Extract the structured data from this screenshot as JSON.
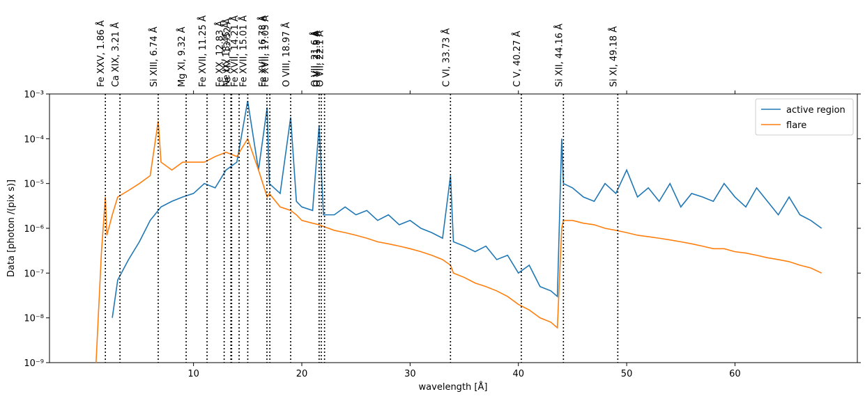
{
  "chart_data": {
    "type": "line",
    "xlabel": "wavelength [Å]",
    "ylabel": "Data [photon /(pix s)]",
    "log_y": true,
    "legend": "upper right",
    "xlim": [
      -3.3,
      71.3
    ],
    "ylim": [
      1e-09,
      0.001
    ],
    "xticks": [
      10,
      20,
      30,
      40,
      50,
      60
    ],
    "yticks": [
      {
        "value": 1e-09,
        "label": "10⁻⁹"
      },
      {
        "value": 1e-08,
        "label": "10⁻⁸"
      },
      {
        "value": 1e-07,
        "label": "10⁻⁷"
      },
      {
        "value": 1e-06,
        "label": "10⁻⁶"
      },
      {
        "value": 1e-05,
        "label": "10⁻⁵"
      },
      {
        "value": 0.0001,
        "label": "10⁻⁴"
      },
      {
        "value": 0.001,
        "label": "10⁻³"
      }
    ],
    "x": [
      1,
      1.5,
      1.86,
      2,
      2.5,
      3,
      4,
      5,
      6,
      6.74,
      7,
      8,
      9,
      10,
      11,
      12,
      13,
      14,
      15,
      16,
      16.8,
      17,
      18,
      18.97,
      19.5,
      20,
      21,
      21.6,
      22,
      23,
      24,
      25,
      26,
      27,
      28,
      29,
      30,
      31,
      32,
      33,
      33.73,
      34,
      35,
      36,
      37,
      38,
      39,
      40,
      41,
      42,
      43,
      43.6,
      44,
      44.16,
      45,
      46,
      47,
      48,
      49,
      50,
      51,
      52,
      53,
      54,
      55,
      56,
      57,
      58,
      59,
      60,
      61,
      62,
      63,
      64,
      65,
      66,
      67,
      68
    ],
    "series": [
      {
        "name": "active region",
        "color": "#1f77b4",
        "values": [
          null,
          null,
          null,
          null,
          1e-08,
          7e-08,
          2e-07,
          5e-07,
          1.5e-06,
          2.5e-06,
          3e-06,
          4e-06,
          5e-06,
          6e-06,
          1e-05,
          8e-06,
          2e-05,
          3e-05,
          0.0007,
          2e-05,
          0.0005,
          1e-05,
          6e-06,
          0.0003,
          4e-06,
          3e-06,
          2.5e-06,
          0.0002,
          2e-06,
          2e-06,
          3e-06,
          2e-06,
          2.5e-06,
          1.5e-06,
          2e-06,
          1.2e-06,
          1.5e-06,
          1e-06,
          8e-07,
          6e-07,
          1.5e-05,
          5e-07,
          4e-07,
          3e-07,
          4e-07,
          2e-07,
          2.5e-07,
          1e-07,
          1.5e-07,
          5e-08,
          4e-08,
          3e-08,
          0.0001,
          1e-05,
          8e-06,
          5e-06,
          4e-06,
          1e-05,
          6e-06,
          2e-05,
          5e-06,
          8e-06,
          4e-06,
          1e-05,
          3e-06,
          6e-06,
          5e-06,
          4e-06,
          1e-05,
          5e-06,
          3e-06,
          8e-06,
          4e-06,
          2e-06,
          5e-06,
          2e-06,
          1.5e-06,
          1e-06
        ]
      },
      {
        "name": "flare",
        "color": "#ff7f0e",
        "values": [
          1e-09,
          3e-07,
          5e-06,
          7e-07,
          2e-06,
          5e-06,
          7e-06,
          1e-05,
          1.5e-05,
          0.00025,
          3e-05,
          2e-05,
          3e-05,
          3e-05,
          3e-05,
          4e-05,
          5e-05,
          4e-05,
          0.0001,
          2e-05,
          5e-06,
          6e-06,
          3e-06,
          2.5e-06,
          2e-06,
          1.5e-06,
          1.3e-06,
          1.2e-06,
          1.1e-06,
          9e-07,
          8e-07,
          7e-07,
          6e-07,
          5e-07,
          4.5e-07,
          4e-07,
          3.5e-07,
          3e-07,
          2.5e-07,
          2e-07,
          1.5e-07,
          1e-07,
          8e-08,
          6e-08,
          5e-08,
          4e-08,
          3e-08,
          2e-08,
          1.5e-08,
          1e-08,
          8e-09,
          6e-09,
          1e-06,
          1.5e-06,
          1.5e-06,
          1.3e-06,
          1.2e-06,
          1e-06,
          9e-07,
          8e-07,
          7e-07,
          6.5e-07,
          6e-07,
          5.5e-07,
          5e-07,
          4.5e-07,
          4e-07,
          3.5e-07,
          3.5e-07,
          3e-07,
          2.8e-07,
          2.5e-07,
          2.2e-07,
          2e-07,
          1.8e-07,
          1.5e-07,
          1.3e-07,
          1e-07
        ]
      }
    ],
    "lines": [
      {
        "label": "Fe XXV, 1.86 Å",
        "x": 1.86
      },
      {
        "label": "Ca XIX, 3.21 Å",
        "x": 3.21
      },
      {
        "label": "Si XIII, 6.74 Å",
        "x": 6.74
      },
      {
        "label": "Mg XI, 9.32 Å",
        "x": 9.32
      },
      {
        "label": "Fe XVII, 11.25 Å",
        "x": 11.25
      },
      {
        "label": "Fe XX, 12.83 Å",
        "x": 12.83
      },
      {
        "label": "Ne IX, 13.45 Å",
        "x": 13.45
      },
      {
        "label": "Fe XIX, 13.52 Å",
        "x": 13.52
      },
      {
        "label": "Fe XVII, 14.21 Å",
        "x": 14.21
      },
      {
        "label": "Fe XVII, 15.01 Å",
        "x": 15.01
      },
      {
        "label": "Fe XVII, 16.78 Å",
        "x": 16.78
      },
      {
        "label": "Fe XVII, 17.05 Å",
        "x": 17.05
      },
      {
        "label": "O VIII, 18.97 Å",
        "x": 18.97
      },
      {
        "label": "O VII, 21.6 Å",
        "x": 21.6
      },
      {
        "label": "O VII, 21.8 Å",
        "x": 21.8
      },
      {
        "label": "O VII, 22.1 Å",
        "x": 22.1
      },
      {
        "label": "C VI, 33.73 Å",
        "x": 33.73
      },
      {
        "label": "C V, 40.27 Å",
        "x": 40.27
      },
      {
        "label": "Si XII, 44.16 Å",
        "x": 44.16
      },
      {
        "label": "Si XI, 49.18 Å",
        "x": 49.18
      }
    ]
  }
}
